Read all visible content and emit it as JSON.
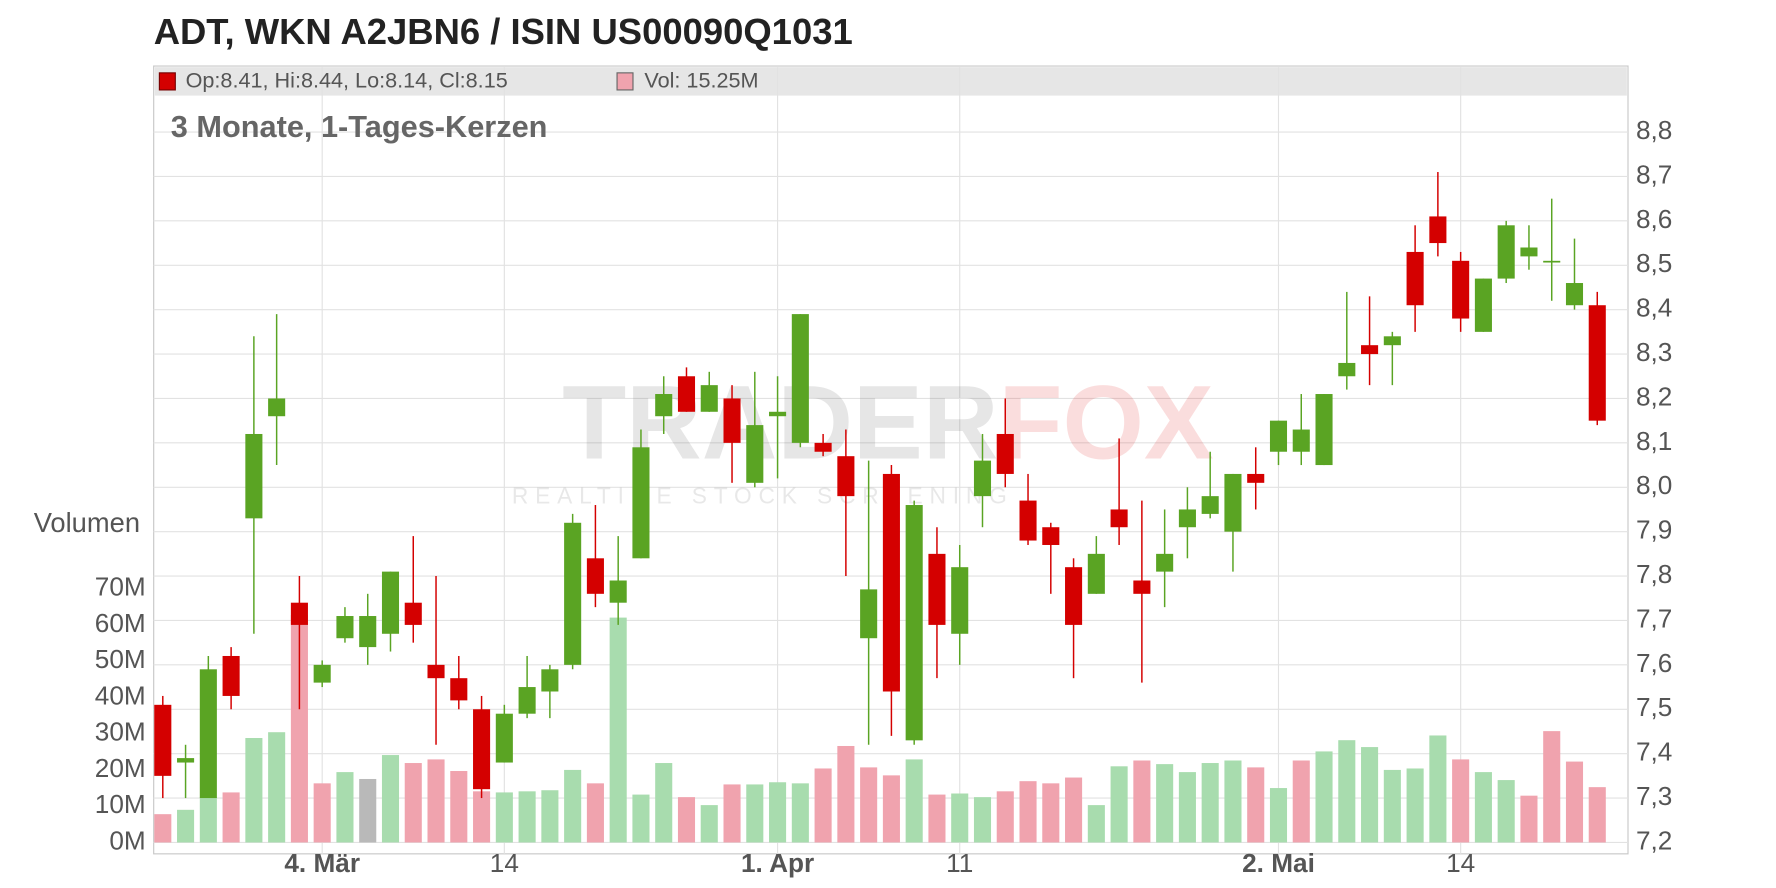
{
  "chart_data": {
    "type": "candlestick",
    "title": "ADT, WKN A2JBN6 / ISIN US00090Q1031",
    "subtitle": "3 Monate, 1-Tages-Kerzen",
    "legend_ohlc": "Op:8.41, Hi:8.44, Lo:8.14, Cl:8.15",
    "legend_volume": "Vol: 15.25M",
    "watermark": [
      "TRADER",
      "FOX"
    ],
    "watermark_tagline": "REALTIME STOCK SCREENING",
    "categories": [
      null,
      null,
      null,
      null,
      null,
      null,
      null,
      "4. Mär",
      null,
      null,
      null,
      null,
      null,
      null,
      null,
      "14",
      null,
      null,
      null,
      null,
      null,
      null,
      null,
      null,
      null,
      null,
      null,
      "1. Apr",
      null,
      null,
      null,
      null,
      null,
      null,
      null,
      "11",
      null,
      null,
      null,
      null,
      null,
      null,
      null,
      null,
      null,
      null,
      null,
      null,
      null,
      "2. Mai",
      null,
      null,
      null,
      null,
      null,
      null,
      null,
      "14",
      null,
      null,
      null,
      null,
      null,
      null
    ],
    "open": [
      7.51,
      7.38,
      7.3,
      7.62,
      7.93,
      8.16,
      7.74,
      7.56,
      7.66,
      7.64,
      7.67,
      7.74,
      7.6,
      7.57,
      7.5,
      7.38,
      7.49,
      7.54,
      7.6,
      7.84,
      7.74,
      7.84,
      8.16,
      8.25,
      8.17,
      8.2,
      8.01,
      8.16,
      8.1,
      8.1,
      8.07,
      7.66,
      8.03,
      7.43,
      7.85,
      7.67,
      7.98,
      8.12,
      7.97,
      7.91,
      7.82,
      7.76,
      7.95,
      7.79,
      7.81,
      7.91,
      7.94,
      7.9,
      8.03,
      8.08,
      8.08,
      8.05,
      8.25,
      8.32,
      8.32,
      8.53,
      8.61,
      8.51,
      8.35,
      8.47,
      8.52,
      8.51,
      8.41,
      8.41
    ],
    "high": [
      7.53,
      7.42,
      7.62,
      7.64,
      8.34,
      8.39,
      7.8,
      7.61,
      7.73,
      7.76,
      7.81,
      7.89,
      7.8,
      7.62,
      7.53,
      7.51,
      7.62,
      7.6,
      7.94,
      7.96,
      7.89,
      8.13,
      8.25,
      8.27,
      8.26,
      8.23,
      8.26,
      8.25,
      8.39,
      8.12,
      8.13,
      8.06,
      8.05,
      7.97,
      7.91,
      7.87,
      8.12,
      8.2,
      8.03,
      7.92,
      7.84,
      7.89,
      8.11,
      7.97,
      7.95,
      8.0,
      8.08,
      8.03,
      8.09,
      8.15,
      8.21,
      8.21,
      8.44,
      8.43,
      8.35,
      8.59,
      8.71,
      8.53,
      8.47,
      8.6,
      8.59,
      8.65,
      8.56,
      8.44
    ],
    "low": [
      7.3,
      7.3,
      7.3,
      7.5,
      7.67,
      8.05,
      7.5,
      7.55,
      7.65,
      7.6,
      7.63,
      7.65,
      7.42,
      7.5,
      7.3,
      7.38,
      7.48,
      7.48,
      7.59,
      7.73,
      7.69,
      7.84,
      8.12,
      8.17,
      8.17,
      8.01,
      8.0,
      8.02,
      8.09,
      8.07,
      7.8,
      7.42,
      7.44,
      7.42,
      7.57,
      7.6,
      7.91,
      8.0,
      7.87,
      7.76,
      7.57,
      7.76,
      7.87,
      7.56,
      7.73,
      7.84,
      7.93,
      7.81,
      7.95,
      8.05,
      8.05,
      8.05,
      8.22,
      8.23,
      8.23,
      8.35,
      8.52,
      8.35,
      8.35,
      8.46,
      8.49,
      8.42,
      8.4,
      8.14
    ],
    "close": [
      7.35,
      7.39,
      7.59,
      7.53,
      8.12,
      8.2,
      7.69,
      7.6,
      7.71,
      7.71,
      7.81,
      7.69,
      7.57,
      7.52,
      7.32,
      7.49,
      7.55,
      7.59,
      7.92,
      7.76,
      7.79,
      8.09,
      8.21,
      8.17,
      8.23,
      8.1,
      8.14,
      8.17,
      8.39,
      8.08,
      7.98,
      7.77,
      7.54,
      7.96,
      7.69,
      7.82,
      8.06,
      8.03,
      7.88,
      7.87,
      7.69,
      7.85,
      7.91,
      7.76,
      7.85,
      7.95,
      7.98,
      8.03,
      8.01,
      8.15,
      8.13,
      8.21,
      8.28,
      8.3,
      8.34,
      8.41,
      8.55,
      8.38,
      8.47,
      8.59,
      8.54,
      8.51,
      8.46,
      8.15
    ],
    "up_color": "#5aa423",
    "down_color": "#d40000",
    "ylim": [
      7.2,
      8.8
    ],
    "yticks": [
      {
        "value": 7.2,
        "label": "7,2"
      },
      {
        "value": 7.3,
        "label": "7,3"
      },
      {
        "value": 7.4,
        "label": "7,4"
      },
      {
        "value": 7.5,
        "label": "7,5"
      },
      {
        "value": 7.6,
        "label": "7,6"
      },
      {
        "value": 7.7,
        "label": "7,7"
      },
      {
        "value": 7.8,
        "label": "7,8"
      },
      {
        "value": 7.9,
        "label": "7,9"
      },
      {
        "value": 8.0,
        "label": "8,0"
      },
      {
        "value": 8.1,
        "label": "8,1"
      },
      {
        "value": 8.2,
        "label": "8,2"
      },
      {
        "value": 8.3,
        "label": "8,3"
      },
      {
        "value": 8.4,
        "label": "8,4"
      },
      {
        "value": 8.5,
        "label": "8,5"
      },
      {
        "value": 8.6,
        "label": "8,6"
      },
      {
        "value": 8.7,
        "label": "8,7"
      },
      {
        "value": 8.8,
        "label": "8,8"
      }
    ],
    "grid": true,
    "volume": {
      "axis_label": "Volumen",
      "values": [
        7.8,
        9,
        12.5,
        13.8,
        28.8,
        30.4,
        62.7,
        16.3,
        19.4,
        17.5,
        24.1,
        21.9,
        22.9,
        19.7,
        14.1,
        13.8,
        14.1,
        14.4,
        20,
        16.3,
        62,
        13.2,
        21.9,
        12.5,
        10.3,
        16,
        16,
        16.6,
        16.3,
        20.4,
        26.6,
        20.7,
        18.5,
        22.9,
        13.2,
        13.5,
        12.5,
        14.1,
        16.9,
        16.3,
        17.9,
        10.3,
        21,
        22.6,
        21.6,
        19.4,
        21.9,
        22.6,
        20.7,
        15,
        22.6,
        25.1,
        28.2,
        26.3,
        20,
        20.4,
        29.5,
        22.9,
        19.4,
        17.2,
        12.9,
        30.7,
        22.3,
        15.25
      ],
      "ylim": [
        0,
        70
      ],
      "yticks": [
        {
          "value": 0,
          "label": "0M"
        },
        {
          "value": 10,
          "label": "10M"
        },
        {
          "value": 20,
          "label": "20M"
        },
        {
          "value": 30,
          "label": "30M"
        },
        {
          "value": 40,
          "label": "40M"
        },
        {
          "value": 50,
          "label": "50M"
        },
        {
          "value": 60,
          "label": "60M"
        },
        {
          "value": 70,
          "label": "70M"
        }
      ],
      "up_color": "#a8dcae",
      "down_color": "#f0a3ae",
      "flat_color": "#b9b9b9"
    }
  }
}
